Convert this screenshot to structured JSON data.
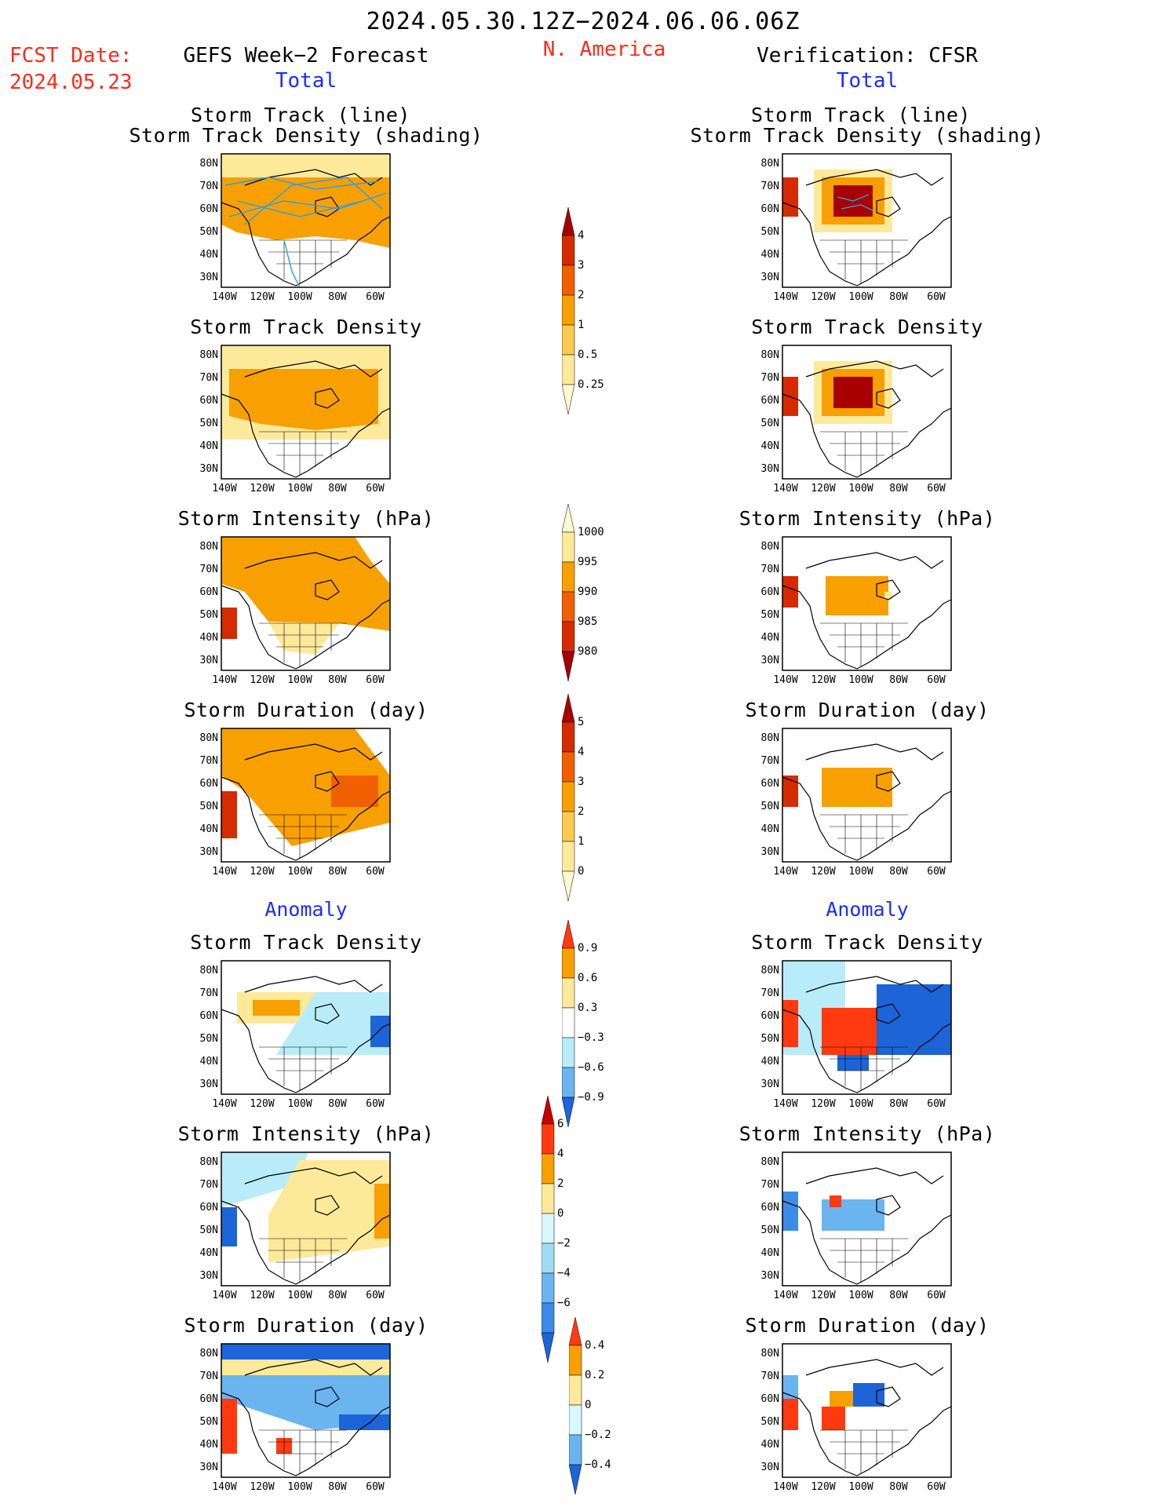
{
  "header": {
    "date_range": "2024.05.30.12Z−2024.06.06.06Z",
    "region": "N. America",
    "fcst_label": "FCST Date:",
    "fcst_date": "2024.05.23",
    "left_title": "GEFS Week−2 Forecast",
    "right_title": "Verification: CFSR",
    "left_section": "Total",
    "right_section": "Total"
  },
  "anomaly_labels": {
    "left": "Anomaly",
    "right": "Anomaly"
  },
  "panel_titles": {
    "track_line": "Storm Track (line)",
    "track_shading": "Storm Track Density (shading)",
    "density": "Storm Track Density",
    "intensity": "Storm Intensity (hPa)",
    "duration": "Storm Duration (day)"
  },
  "axes": {
    "lat_labels": [
      "80N",
      "70N",
      "60N",
      "50N",
      "40N",
      "30N"
    ],
    "lon_labels": [
      "140W",
      "120W",
      "100W",
      "80W",
      "60W"
    ]
  },
  "colorbars": [
    {
      "name": "track-density-total",
      "labels": [
        "4",
        "3",
        "2",
        "1",
        "0.5",
        "0.25"
      ],
      "colors": [
        "#a80000",
        "#d62a00",
        "#f06000",
        "#f7a000",
        "#fbc850",
        "#fde99a",
        "#fffcd0"
      ]
    },
    {
      "name": "intensity-total",
      "labels": [
        "1000",
        "995",
        "990",
        "985",
        "980"
      ],
      "colors": [
        "#fffcd0",
        "#fde99a",
        "#f7a000",
        "#f06000",
        "#d62a00",
        "#a80000"
      ]
    },
    {
      "name": "duration-total",
      "labels": [
        "5",
        "4",
        "3",
        "2",
        "1",
        "0"
      ],
      "colors": [
        "#a80000",
        "#d62a00",
        "#f06000",
        "#f7a000",
        "#fbc850",
        "#fde99a",
        "#fffcd0"
      ]
    },
    {
      "name": "density-anomaly",
      "labels": [
        "0.9",
        "0.6",
        "0.3",
        "−0.3",
        "−0.6",
        "−0.9"
      ],
      "colors": [
        "#ff3a10",
        "#f7a000",
        "#fde99a",
        "#ffffff",
        "#b8ecf8",
        "#6ab4f0",
        "#1c64d8"
      ]
    },
    {
      "name": "intensity-anomaly",
      "labels": [
        "6",
        "4",
        "2",
        "0",
        "−2",
        "−4",
        "−6"
      ],
      "colors": [
        "#c80000",
        "#ff3a10",
        "#f7a000",
        "#fde99a",
        "#d8f6fc",
        "#a0dcf4",
        "#6ab4f0",
        "#3c8ce8",
        "#1c64d8"
      ]
    },
    {
      "name": "duration-anomaly",
      "labels": [
        "0.4",
        "0.2",
        "0",
        "−0.2",
        "−0.4"
      ],
      "colors": [
        "#ff3a10",
        "#f7a000",
        "#fde99a",
        "#d8f6fc",
        "#6ab4f0",
        "#1c64d8"
      ]
    }
  ],
  "colors": {
    "forecast_fill": "#f7a000",
    "light_fill": "#fde99a",
    "strong_fill": "#a80000",
    "negative_fill": "#1c64d8",
    "track_line": "#2aa0e8"
  }
}
